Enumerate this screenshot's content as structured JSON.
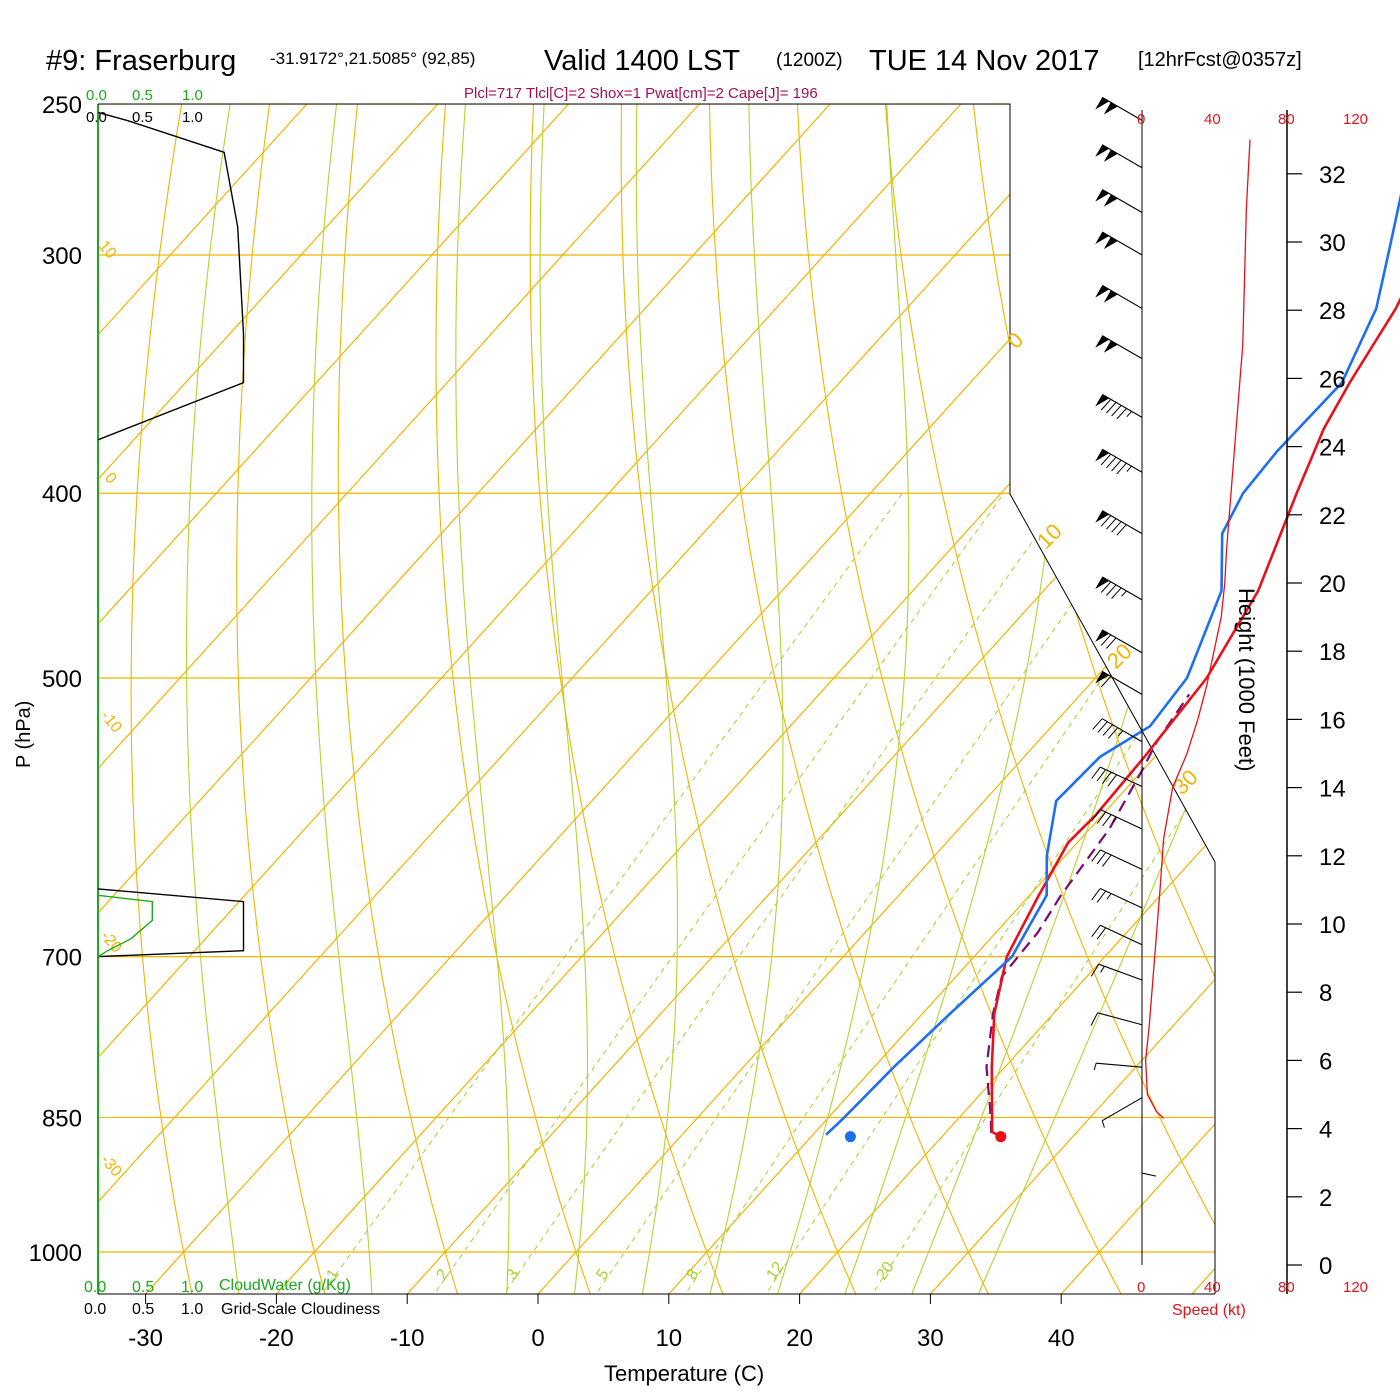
{
  "header": {
    "station": "#9: Fraserburg",
    "coords": "-31.9172°,21.5085° (92,85)",
    "valid": "Valid 1400 LST",
    "zulu": "(1200Z)",
    "date": "TUE 14 Nov 2017",
    "forecast": "[12hrFcst@0357z]",
    "indices": "Plcl=717 Tlcl[C]=2 Shox=1 Pwat[cm]=2 Cape[J]= 196"
  },
  "labels": {
    "ylabel": "P (hPa)",
    "xlabel": "Temperature (C)",
    "height_axis": "Height (1000 Feet)",
    "speed_label": "Speed (kt)",
    "cloud_water": "CloudWater (g/Kg)",
    "cloudiness": "Grid-Scale Cloudiness"
  },
  "colors": {
    "isobar": "#f0b400",
    "isotherm": "#f0b400",
    "dry_adiabat": "#f0b400",
    "moist_adiabat": "#b4d232",
    "mixing_ratio": "#a8d02a",
    "temperature": "#e8101a",
    "dewpoint": "#1e6ef0",
    "parcel": "#7a0a70",
    "cloud_water": "#1aaa1a",
    "cloudiness": "#000000",
    "wind_speed": "#e8101a",
    "indices": "#a0105a"
  },
  "scales": {
    "cloud_ticks_top": [
      "0.0",
      "0.5",
      "1.0"
    ],
    "cloud_ticks_bottom": [
      "0.0",
      "0.5",
      "1.0"
    ],
    "speed_ticks": [
      "0",
      "40",
      "80",
      "120"
    ]
  },
  "chart_data": {
    "type": "skew-t sounding",
    "pressure_ticks_hpa": [
      250,
      300,
      400,
      500,
      700,
      850,
      1000
    ],
    "temperature_ticks_c": [
      -30,
      -20,
      -10,
      0,
      10,
      20,
      30,
      40
    ],
    "height_ticks_kft": [
      0,
      2,
      4,
      6,
      8,
      10,
      12,
      14,
      16,
      18,
      20,
      22,
      24,
      26,
      28,
      30,
      32
    ],
    "dry_adiabat_labels": [
      "10",
      "0",
      "-10",
      "-20",
      "-30"
    ],
    "isotherm_labels": [
      "0",
      "10",
      "20",
      "30"
    ],
    "mixing_ratio_labels": [
      "1",
      "2",
      "3",
      "5",
      "8",
      "12",
      "20"
    ],
    "temperature_profile": [
      {
        "p": 870,
        "t": 24.5
      },
      {
        "p": 865,
        "t": 23.5
      },
      {
        "p": 850,
        "t": 22.5
      },
      {
        "p": 800,
        "t": 19.0
      },
      {
        "p": 750,
        "t": 15.5
      },
      {
        "p": 700,
        "t": 12.5
      },
      {
        "p": 650,
        "t": 10.7
      },
      {
        "p": 610,
        "t": 9.3
      },
      {
        "p": 590,
        "t": 9.5
      },
      {
        "p": 550,
        "t": 9.2
      },
      {
        "p": 500,
        "t": 8.5
      },
      {
        "p": 450,
        "t": 6.4
      },
      {
        "p": 400,
        "t": 2.6
      },
      {
        "p": 370,
        "t": 0.2
      },
      {
        "p": 350,
        "t": -1.0
      },
      {
        "p": 320,
        "t": -2.6
      },
      {
        "p": 300,
        "t": -4.3
      },
      {
        "p": 270,
        "t": -8.2
      },
      {
        "p": 250,
        "t": -10.8
      }
    ],
    "dewpoint_profile": [
      {
        "p": 868,
        "t": 11.0
      },
      {
        "p": 850,
        "t": 11.2
      },
      {
        "p": 800,
        "t": 11.5
      },
      {
        "p": 750,
        "t": 12.1
      },
      {
        "p": 700,
        "t": 12.9
      },
      {
        "p": 650,
        "t": 11.3
      },
      {
        "p": 620,
        "t": 8.6
      },
      {
        "p": 580,
        "t": 5.5
      },
      {
        "p": 550,
        "t": 5.8
      },
      {
        "p": 530,
        "t": 7.5
      },
      {
        "p": 500,
        "t": 7.0
      },
      {
        "p": 450,
        "t": 3.6
      },
      {
        "p": 420,
        "t": -0.3
      },
      {
        "p": 400,
        "t": -1.5
      },
      {
        "p": 380,
        "t": -1.8
      },
      {
        "p": 350,
        "t": -1.6
      },
      {
        "p": 320,
        "t": -4.1
      },
      {
        "p": 300,
        "t": -6.9
      },
      {
        "p": 270,
        "t": -11.5
      },
      {
        "p": 250,
        "t": -14.0
      }
    ],
    "parcel_profile": [
      {
        "p": 866,
        "t": 23.5
      },
      {
        "p": 850,
        "t": 22.4
      },
      {
        "p": 800,
        "t": 18.6
      },
      {
        "p": 750,
        "t": 15.4
      },
      {
        "p": 717,
        "t": 13.5
      },
      {
        "p": 680,
        "t": 13.2
      },
      {
        "p": 650,
        "t": 12.4
      },
      {
        "p": 600,
        "t": 11.5
      },
      {
        "p": 560,
        "t": 10.0
      },
      {
        "p": 540,
        "t": 9.1
      },
      {
        "p": 510,
        "t": 8.3
      }
    ],
    "surface_temperature_c": 24.5,
    "surface_dewpoint_c": 13.0,
    "surface_pressure_hpa": 870,
    "wind_speed_profile_kt": [
      {
        "z": 4.3,
        "s": 12
      },
      {
        "z": 4.5,
        "s": 8
      },
      {
        "z": 5.0,
        "s": 3
      },
      {
        "z": 6.0,
        "s": 2
      },
      {
        "z": 7.0,
        "s": 4
      },
      {
        "z": 9.0,
        "s": 7
      },
      {
        "z": 11.0,
        "s": 10
      },
      {
        "z": 12.5,
        "s": 12
      },
      {
        "z": 14.0,
        "s": 17
      },
      {
        "z": 15.0,
        "s": 25
      },
      {
        "z": 16.0,
        "s": 31
      },
      {
        "z": 17.0,
        "s": 36
      },
      {
        "z": 18.0,
        "s": 40
      },
      {
        "z": 19.0,
        "s": 44
      },
      {
        "z": 20.0,
        "s": 46
      },
      {
        "z": 21.0,
        "s": 47
      },
      {
        "z": 23.0,
        "s": 50
      },
      {
        "z": 25.0,
        "s": 53
      },
      {
        "z": 27.0,
        "s": 56
      },
      {
        "z": 29.0,
        "s": 57
      },
      {
        "z": 31.0,
        "s": 58
      },
      {
        "z": 33.0,
        "s": 60
      }
    ],
    "wind_barbs": [
      {
        "p": 255,
        "speed": 100,
        "dir": 300
      },
      {
        "p": 270,
        "speed": 100,
        "dir": 300
      },
      {
        "p": 285,
        "speed": 100,
        "dir": 300
      },
      {
        "p": 300,
        "speed": 100,
        "dir": 300
      },
      {
        "p": 320,
        "speed": 100,
        "dir": 300
      },
      {
        "p": 340,
        "speed": 100,
        "dir": 300
      },
      {
        "p": 365,
        "speed": 95,
        "dir": 300
      },
      {
        "p": 390,
        "speed": 95,
        "dir": 300
      },
      {
        "p": 420,
        "speed": 90,
        "dir": 300
      },
      {
        "p": 455,
        "speed": 85,
        "dir": 300
      },
      {
        "p": 485,
        "speed": 70,
        "dir": 300
      },
      {
        "p": 510,
        "speed": 60,
        "dir": 300
      },
      {
        "p": 540,
        "speed": 45,
        "dir": 300
      },
      {
        "p": 570,
        "speed": 40,
        "dir": 295
      },
      {
        "p": 600,
        "speed": 35,
        "dir": 295
      },
      {
        "p": 630,
        "speed": 30,
        "dir": 295
      },
      {
        "p": 660,
        "speed": 25,
        "dir": 295
      },
      {
        "p": 690,
        "speed": 20,
        "dir": 295
      },
      {
        "p": 720,
        "speed": 15,
        "dir": 290
      },
      {
        "p": 760,
        "speed": 10,
        "dir": 285
      },
      {
        "p": 800,
        "speed": 5,
        "dir": 275
      },
      {
        "p": 830,
        "speed": 5,
        "dir": 240
      },
      {
        "p": 860,
        "speed": 10,
        "dir": 180
      }
    ],
    "cloud_water_profile": [
      {
        "p": 650,
        "v": 0.0
      },
      {
        "p": 655,
        "v": 0.28
      },
      {
        "p": 670,
        "v": 0.28
      },
      {
        "p": 685,
        "v": 0.17
      },
      {
        "p": 695,
        "v": 0.05
      },
      {
        "p": 700,
        "v": 0.0
      }
    ],
    "cloudiness_profile": [
      {
        "p": 255,
        "v": 0.15
      },
      {
        "p": 265,
        "v": 0.65
      },
      {
        "p": 290,
        "v": 0.72
      },
      {
        "p": 330,
        "v": 0.75
      },
      {
        "p": 350,
        "v": 0.75
      },
      {
        "p": 375,
        "v": 0.0
      }
    ],
    "cloudiness_profile_low": [
      {
        "p": 645,
        "v": 0.0
      },
      {
        "p": 655,
        "v": 0.75
      },
      {
        "p": 695,
        "v": 0.75
      },
      {
        "p": 700,
        "v": 0.0
      }
    ]
  }
}
